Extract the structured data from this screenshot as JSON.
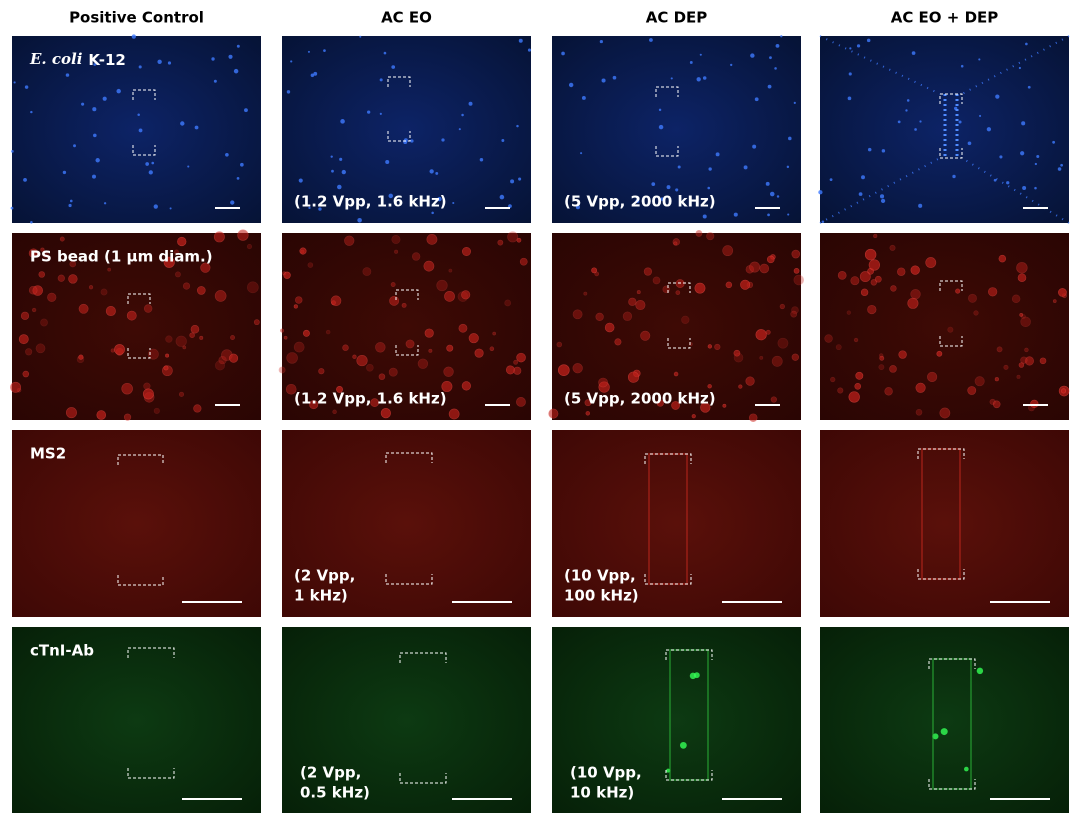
{
  "header": {
    "columns": [
      "Positive Control",
      "AC EO",
      "AC DEP",
      "AC EO + DEP"
    ]
  },
  "rows": [
    {
      "label_italic": "E. coli",
      "label": "K-12",
      "ac_eo": [
        "(1.2 Vpp, 1.6 kHz)"
      ],
      "ac_dep": [
        "(5 Vpp, 2000 kHz)"
      ]
    },
    {
      "label": "PS bead (1 μm diam.)",
      "ac_eo": [
        "(1.2 Vpp, 1.6 kHz)"
      ],
      "ac_dep": [
        "(5 Vpp, 2000 kHz)"
      ]
    },
    {
      "label": "MS2",
      "ac_eo": [
        "(2 Vpp,",
        "1 kHz)"
      ],
      "ac_dep": [
        "(10 Vpp,",
        "100 kHz)"
      ]
    },
    {
      "label": "cTnI-Ab",
      "ac_eo": [
        "(2 Vpp,",
        "0.5 kHz)"
      ],
      "ac_dep": [
        "(10 Vpp,",
        "10 kHz)"
      ]
    }
  ]
}
